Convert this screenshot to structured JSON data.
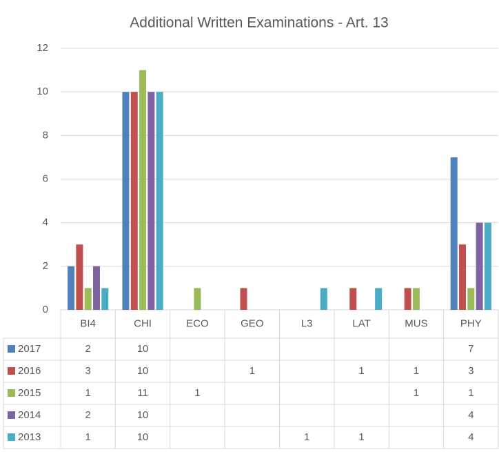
{
  "chart_data": {
    "type": "bar",
    "title": "Additional Written Examinations - Art. 13",
    "categories": [
      "BI4",
      "CHI",
      "ECO",
      "GEO",
      "L3",
      "LAT",
      "MUS",
      "PHY"
    ],
    "series": [
      {
        "name": "2017",
        "color": "#4f81bd",
        "values": [
          2,
          10,
          null,
          null,
          null,
          null,
          null,
          7
        ]
      },
      {
        "name": "2016",
        "color": "#c0504d",
        "values": [
          3,
          10,
          null,
          1,
          null,
          1,
          1,
          3
        ]
      },
      {
        "name": "2015",
        "color": "#9bbb59",
        "values": [
          1,
          11,
          1,
          null,
          null,
          null,
          1,
          1
        ]
      },
      {
        "name": "2014",
        "color": "#8064a2",
        "values": [
          2,
          10,
          null,
          null,
          null,
          null,
          null,
          4
        ]
      },
      {
        "name": "2013",
        "color": "#4bacc6",
        "values": [
          1,
          10,
          null,
          null,
          1,
          1,
          null,
          4
        ]
      }
    ],
    "ylim": [
      0,
      12
    ],
    "yticks": [
      0,
      2,
      4,
      6,
      8,
      10,
      12
    ],
    "grid": true
  }
}
